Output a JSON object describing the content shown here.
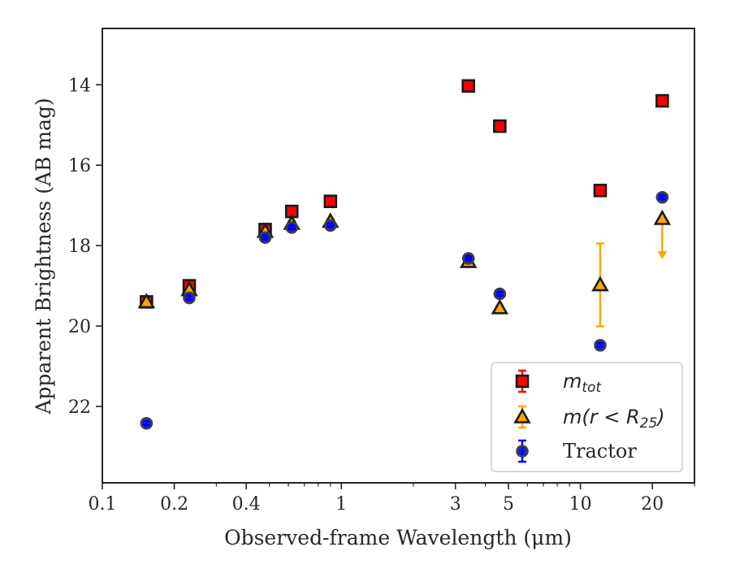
{
  "chart_data": {
    "type": "scatter",
    "xlabel": "Observed-frame Wavelength (μm)",
    "ylabel": "Apparent Brightness (AB mag)",
    "xscale": "log",
    "xlim": [
      0.1,
      30
    ],
    "ylim": [
      23.9,
      12.6
    ],
    "y_inverted": true,
    "grid": false,
    "legend_position": "lower-right",
    "x_ticks": [
      0.1,
      0.2,
      0.4,
      1,
      3,
      5,
      10,
      20
    ],
    "x_tick_labels": [
      "0.1",
      "0.2",
      "0.4",
      "1",
      "3",
      "5",
      "10",
      "20"
    ],
    "y_ticks": [
      14,
      16,
      18,
      20,
      22
    ],
    "y_tick_labels": [
      "14",
      "16",
      "18",
      "20",
      "22"
    ],
    "series": [
      {
        "name": "m_tot",
        "legend_main": "m",
        "legend_sub": "tot",
        "marker": "square",
        "color": "#ff0000",
        "edge_color": "#1a1a1a",
        "points": [
          {
            "x": 0.153,
            "y": 19.4,
            "err": 0.05
          },
          {
            "x": 0.231,
            "y": 19.0,
            "err": 0.05
          },
          {
            "x": 0.48,
            "y": 17.6,
            "err": 0.05
          },
          {
            "x": 0.62,
            "y": 17.15,
            "err": 0.05
          },
          {
            "x": 0.9,
            "y": 16.9,
            "err": 0.05
          },
          {
            "x": 3.4,
            "y": 14.03,
            "err": 0.03
          },
          {
            "x": 4.6,
            "y": 15.03,
            "err": 0.03
          },
          {
            "x": 12.1,
            "y": 16.63,
            "err": 0.03
          },
          {
            "x": 22.0,
            "y": 14.4,
            "err": 0.03
          }
        ]
      },
      {
        "name": "m(r < R25)",
        "legend_main": "m(r < R",
        "legend_sub": "25",
        "legend_tail": ")",
        "marker": "triangle",
        "color": "#ffa500",
        "edge_color": "#1a1a1a",
        "points": [
          {
            "x": 0.153,
            "y": 19.4,
            "err": 0.05
          },
          {
            "x": 0.231,
            "y": 19.1,
            "err": 0.05
          },
          {
            "x": 0.48,
            "y": 17.65,
            "err": 0.05
          },
          {
            "x": 0.62,
            "y": 17.45,
            "err": 0.05
          },
          {
            "x": 0.9,
            "y": 17.4,
            "err": 0.05
          },
          {
            "x": 3.4,
            "y": 18.4,
            "err": 0.05
          },
          {
            "x": 4.6,
            "y": 19.55,
            "err": 0.05
          },
          {
            "x": 12.1,
            "y": 18.98,
            "err": 1.03
          },
          {
            "x": 22.0,
            "y": 17.33,
            "upper_limit": true,
            "limit_to": 18.3
          }
        ]
      },
      {
        "name": "Tractor",
        "marker": "circle",
        "color": "#0000ff",
        "edge_color": "#404040",
        "points": [
          {
            "x": 0.153,
            "y": 22.42,
            "err": 0.05
          },
          {
            "x": 0.231,
            "y": 19.3,
            "err": 0.05
          },
          {
            "x": 0.48,
            "y": 17.8,
            "err": 0.05
          },
          {
            "x": 0.62,
            "y": 17.55,
            "err": 0.05
          },
          {
            "x": 0.9,
            "y": 17.5,
            "err": 0.05
          },
          {
            "x": 3.4,
            "y": 18.32,
            "err": 0.05
          },
          {
            "x": 4.6,
            "y": 19.2,
            "err": 0.05
          },
          {
            "x": 12.1,
            "y": 20.48,
            "err": 0.05
          },
          {
            "x": 22.0,
            "y": 16.8,
            "err": 0.05
          }
        ]
      }
    ]
  }
}
